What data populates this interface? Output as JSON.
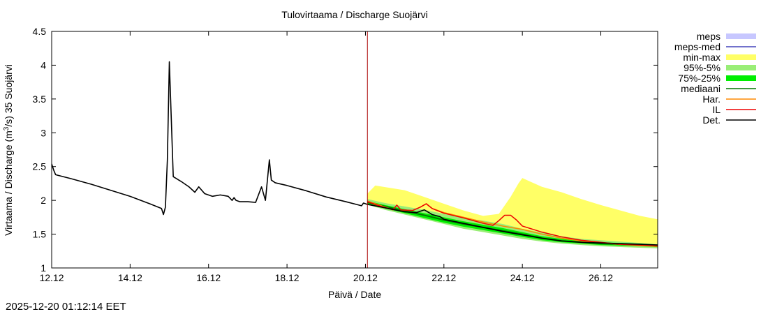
{
  "chart_data": {
    "type": "line",
    "title": "Tulovirtaama / Discharge  Suojärvi",
    "xlabel": "Päivä / Date",
    "ylabel_prefix": "Virtaama / Discharge (m",
    "ylabel_sup": "3",
    "ylabel_suffix": "/s)  35 Suojärvi",
    "xlim": [
      12.0,
      27.45
    ],
    "ylim": [
      1.0,
      4.5
    ],
    "x_unit": "day of December 2025",
    "x_ticks": [
      {
        "value": 12,
        "label": "12.12"
      },
      {
        "value": 14,
        "label": "14.12"
      },
      {
        "value": 16,
        "label": "16.12"
      },
      {
        "value": 18,
        "label": "18.12"
      },
      {
        "value": 20,
        "label": "20.12"
      },
      {
        "value": 22,
        "label": "22.12"
      },
      {
        "value": 24,
        "label": "24.12"
      },
      {
        "value": 26,
        "label": "26.12"
      }
    ],
    "y_ticks": [
      {
        "value": 1,
        "label": "1"
      },
      {
        "value": 1.5,
        "label": "1.5"
      },
      {
        "value": 2,
        "label": "2"
      },
      {
        "value": 2.5,
        "label": "2.5"
      },
      {
        "value": 3,
        "label": "3"
      },
      {
        "value": 3.5,
        "label": "3.5"
      },
      {
        "value": 4,
        "label": "4"
      },
      {
        "value": 4.5,
        "label": "4.5"
      }
    ],
    "forecast_start": 20.05,
    "series": [
      {
        "name": "min-max",
        "kind": "band",
        "color": "#ffff66",
        "x": [
          20.05,
          20.25,
          21.0,
          21.5,
          22.0,
          22.5,
          23.0,
          23.4,
          23.7,
          23.9,
          24.0,
          24.5,
          25.0,
          25.5,
          26.0,
          26.5,
          27.0,
          27.45
        ],
        "low": [
          1.95,
          1.9,
          1.82,
          1.75,
          1.68,
          1.62,
          1.57,
          1.52,
          1.48,
          1.45,
          1.43,
          1.4,
          1.37,
          1.35,
          1.33,
          1.31,
          1.3,
          1.29
        ],
        "high": [
          2.1,
          2.22,
          2.15,
          2.05,
          1.95,
          1.85,
          1.77,
          1.8,
          2.05,
          2.25,
          2.33,
          2.2,
          2.12,
          2.02,
          1.93,
          1.85,
          1.77,
          1.72
        ]
      },
      {
        "name": "95%-5%",
        "kind": "band",
        "color": "#99ee77",
        "x": [
          20.05,
          20.5,
          21.0,
          21.5,
          22.0,
          22.5,
          23.0,
          23.5,
          24.0,
          24.5,
          25.0,
          25.5,
          26.0,
          26.5,
          27.0,
          27.45
        ],
        "low": [
          1.94,
          1.86,
          1.79,
          1.72,
          1.65,
          1.58,
          1.53,
          1.48,
          1.43,
          1.39,
          1.36,
          1.34,
          1.32,
          1.31,
          1.3,
          1.29
        ],
        "high": [
          2.02,
          1.96,
          1.91,
          1.86,
          1.8,
          1.74,
          1.7,
          1.65,
          1.58,
          1.52,
          1.47,
          1.43,
          1.41,
          1.39,
          1.37,
          1.35
        ]
      },
      {
        "name": "75%-25%",
        "kind": "band",
        "color": "#00ee00",
        "x": [
          20.05,
          20.5,
          21.0,
          21.5,
          22.0,
          22.5,
          23.0,
          23.5,
          24.0,
          24.5,
          25.0,
          25.5,
          26.0,
          26.5,
          27.0,
          27.45
        ],
        "low": [
          1.95,
          1.88,
          1.81,
          1.74,
          1.67,
          1.61,
          1.56,
          1.51,
          1.46,
          1.41,
          1.38,
          1.36,
          1.34,
          1.33,
          1.32,
          1.31
        ],
        "high": [
          1.99,
          1.93,
          1.87,
          1.81,
          1.75,
          1.69,
          1.64,
          1.59,
          1.53,
          1.47,
          1.43,
          1.4,
          1.38,
          1.37,
          1.36,
          1.34
        ]
      },
      {
        "name": "meps",
        "kind": "band",
        "color": "#c7c7ff",
        "x": [],
        "low": [],
        "high": []
      },
      {
        "name": "meps-med",
        "kind": "line",
        "color": "#4444bb",
        "x": [],
        "y": []
      },
      {
        "name": "mediaani",
        "kind": "line",
        "color": "#007700",
        "x": [
          20.05,
          20.5,
          21.0,
          21.5,
          22.0,
          22.5,
          23.0,
          23.5,
          24.0,
          24.5,
          25.0,
          25.5,
          26.0,
          26.5,
          27.0,
          27.45
        ],
        "y": [
          1.97,
          1.91,
          1.84,
          1.78,
          1.71,
          1.65,
          1.6,
          1.55,
          1.5,
          1.44,
          1.4,
          1.38,
          1.36,
          1.35,
          1.34,
          1.32
        ]
      },
      {
        "name": "Har.",
        "kind": "line",
        "color": "#ff8800",
        "x": [
          20.05,
          20.4,
          20.7,
          20.8,
          20.9,
          21.2,
          21.4,
          21.55,
          21.7,
          22.0,
          22.5,
          23.0,
          23.5,
          24.0,
          24.5,
          25.0,
          25.5,
          26.0,
          26.5,
          27.0,
          27.45
        ],
        "y": [
          1.99,
          1.92,
          1.86,
          1.93,
          1.86,
          1.85,
          1.9,
          1.95,
          1.88,
          1.82,
          1.75,
          1.68,
          1.62,
          1.57,
          1.5,
          1.44,
          1.4,
          1.37,
          1.35,
          1.33,
          1.32
        ]
      },
      {
        "name": "IL",
        "kind": "line",
        "color": "#ee0000",
        "x": [
          20.05,
          20.4,
          20.7,
          20.8,
          20.9,
          21.2,
          21.4,
          21.55,
          21.7,
          22.0,
          22.5,
          23.0,
          23.25,
          23.4,
          23.55,
          23.7,
          23.85,
          24.0,
          24.5,
          25.0,
          25.5,
          26.0,
          26.5,
          27.0,
          27.45
        ],
        "y": [
          1.98,
          1.91,
          1.86,
          1.93,
          1.86,
          1.85,
          1.9,
          1.95,
          1.88,
          1.81,
          1.74,
          1.66,
          1.63,
          1.7,
          1.78,
          1.78,
          1.71,
          1.62,
          1.53,
          1.46,
          1.41,
          1.38,
          1.35,
          1.34,
          1.33
        ]
      },
      {
        "name": "Det.",
        "kind": "line",
        "color": "#000000",
        "x": [
          12.0,
          12.05,
          12.1,
          12.5,
          13.0,
          13.5,
          14.0,
          14.5,
          14.8,
          14.85,
          14.9,
          14.95,
          15.0,
          15.1,
          15.3,
          15.5,
          15.65,
          15.75,
          15.9,
          16.1,
          16.3,
          16.5,
          16.6,
          16.65,
          16.7,
          16.8,
          17.0,
          17.2,
          17.35,
          17.45,
          17.55,
          17.6,
          17.7,
          18.0,
          18.5,
          19.0,
          19.5,
          19.9,
          19.95,
          20.05,
          20.5,
          21.0,
          21.3,
          21.5,
          21.7,
          21.9,
          22.0,
          22.5,
          23.0,
          23.5,
          24.0,
          24.5,
          25.0,
          25.5,
          26.0,
          26.5,
          27.0,
          27.45
        ],
        "y": [
          2.54,
          2.45,
          2.38,
          2.32,
          2.24,
          2.15,
          2.06,
          1.95,
          1.88,
          1.79,
          1.9,
          2.6,
          4.05,
          2.35,
          2.28,
          2.2,
          2.12,
          2.2,
          2.1,
          2.06,
          2.08,
          2.06,
          2.0,
          2.04,
          2.0,
          1.98,
          1.98,
          1.97,
          2.2,
          2.0,
          2.6,
          2.3,
          2.26,
          2.22,
          2.14,
          2.05,
          1.98,
          1.92,
          1.96,
          1.94,
          1.89,
          1.83,
          1.82,
          1.86,
          1.79,
          1.76,
          1.72,
          1.66,
          1.6,
          1.54,
          1.49,
          1.44,
          1.4,
          1.38,
          1.37,
          1.36,
          1.35,
          1.34
        ]
      }
    ],
    "legend": {
      "placement": "right",
      "entries": [
        {
          "label": "meps",
          "kind": "box",
          "color": "#c7c7ff"
        },
        {
          "label": "meps-med",
          "kind": "line",
          "color": "#4444bb"
        },
        {
          "label": "min-max",
          "kind": "box",
          "color": "#ffff66"
        },
        {
          "label": "95%-5%",
          "kind": "box",
          "color": "#99ee77"
        },
        {
          "label": "75%-25%",
          "kind": "box",
          "color": "#00ee00"
        },
        {
          "label": "mediaani",
          "kind": "line",
          "color": "#007700"
        },
        {
          "label": "Har.",
          "kind": "line",
          "color": "#ff8800"
        },
        {
          "label": "IL",
          "kind": "line",
          "color": "#ee0000"
        },
        {
          "label": "Det.",
          "kind": "line",
          "color": "#000000"
        }
      ]
    }
  },
  "timestamp": "2025-12-20 01:12:14 EET"
}
